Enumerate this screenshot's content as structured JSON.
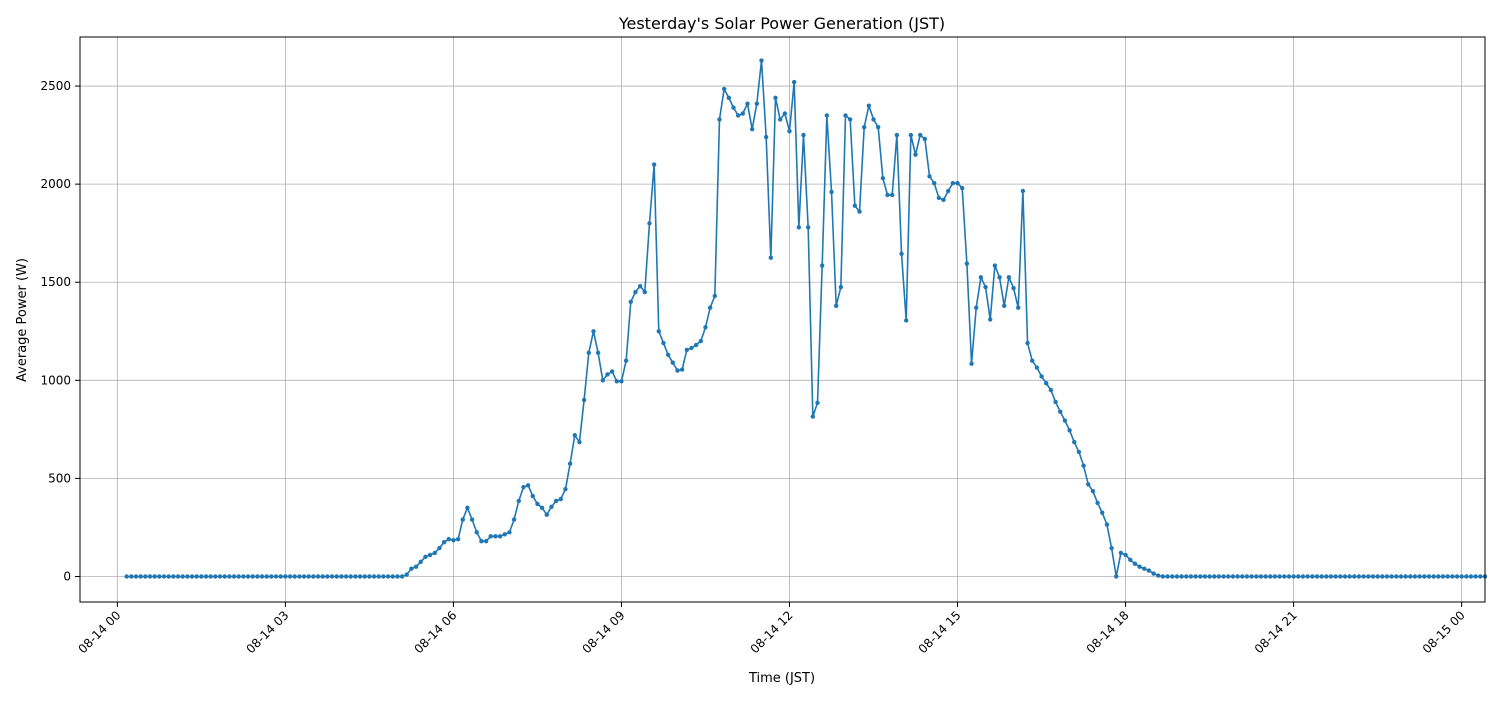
{
  "chart_data": {
    "type": "line",
    "title": "Yesterday's Solar Power Generation (JST)",
    "xlabel": "Time (JST)",
    "ylabel": "Average Power (W)",
    "xlim": [
      "08-13 23:20",
      "08-15 00:25"
    ],
    "ylim": [
      -130,
      2750
    ],
    "grid": true,
    "x_ticks": [
      "08-14 00",
      "08-14 03",
      "08-14 06",
      "08-14 09",
      "08-14 12",
      "08-14 15",
      "08-14 18",
      "08-14 21",
      "08-15 00"
    ],
    "y_ticks": [
      0,
      500,
      1000,
      1500,
      2000,
      2500
    ],
    "colors": {
      "line": "#1f77b4"
    },
    "x_start": "08-14 00:10",
    "x_step_minutes": 5,
    "series": [
      {
        "values": [
          0,
          0,
          0,
          0,
          0,
          0,
          0,
          0,
          0,
          0,
          0,
          0,
          0,
          0,
          0,
          0,
          0,
          0,
          0,
          0,
          0,
          0,
          0,
          0,
          0,
          0,
          0,
          0,
          0,
          0,
          0,
          0,
          0,
          0,
          0,
          0,
          0,
          0,
          0,
          0,
          0,
          0,
          0,
          0,
          0,
          0,
          0,
          0,
          0,
          0,
          0,
          0,
          0,
          0,
          0,
          0,
          0,
          0,
          0,
          0,
          10,
          40,
          50,
          75,
          100,
          110,
          120,
          145,
          175,
          190,
          185,
          190,
          290,
          350,
          290,
          225,
          180,
          180,
          205,
          205,
          205,
          215,
          225,
          290,
          385,
          455,
          465,
          410,
          370,
          350,
          315,
          355,
          385,
          395,
          445,
          575,
          720,
          685,
          900,
          1140,
          1250,
          1140,
          1000,
          1030,
          1045,
          995,
          995,
          1100,
          1400,
          1450,
          1480,
          1450,
          1800,
          2100,
          1250,
          1190,
          1130,
          1090,
          1050,
          1055,
          1155,
          1165,
          1180,
          1200,
          1270,
          1370,
          1430,
          2330,
          2485,
          2440,
          2390,
          2350,
          2360,
          2410,
          2280,
          2410,
          2630,
          2240,
          1625,
          2440,
          2330,
          2360,
          2270,
          2520,
          1780,
          2250,
          1780,
          815,
          885,
          1585,
          2350,
          1960,
          1380,
          1475,
          2350,
          2330,
          1890,
          1860,
          2290,
          2400,
          2330,
          2290,
          2030,
          1945,
          1945,
          2250,
          1645,
          1305,
          2250,
          2150,
          2250,
          2230,
          2040,
          2005,
          1930,
          1920,
          1965,
          2005,
          2005,
          1980,
          1595,
          1085,
          1370,
          1525,
          1475,
          1310,
          1585,
          1525,
          1380,
          1525,
          1470,
          1370,
          1965,
          1190,
          1100,
          1065,
          1020,
          985,
          950,
          890,
          840,
          795,
          745,
          685,
          635,
          565,
          470,
          435,
          375,
          325,
          265,
          145,
          0,
          120,
          110,
          85,
          65,
          50,
          40,
          30,
          15,
          5,
          0,
          0,
          0,
          0,
          0,
          0,
          0,
          0,
          0,
          0,
          0,
          0,
          0,
          0,
          0,
          0,
          0,
          0,
          0,
          0,
          0,
          0,
          0,
          0,
          0,
          0,
          0,
          0,
          0,
          0,
          0,
          0,
          0,
          0,
          0,
          0,
          0,
          0,
          0,
          0,
          0,
          0,
          0,
          0,
          0,
          0,
          0,
          0,
          0,
          0,
          0,
          0,
          0,
          0,
          0,
          0,
          0,
          0,
          0,
          0,
          0,
          0,
          0,
          0,
          0,
          0,
          0,
          0,
          0,
          0
        ]
      }
    ]
  }
}
